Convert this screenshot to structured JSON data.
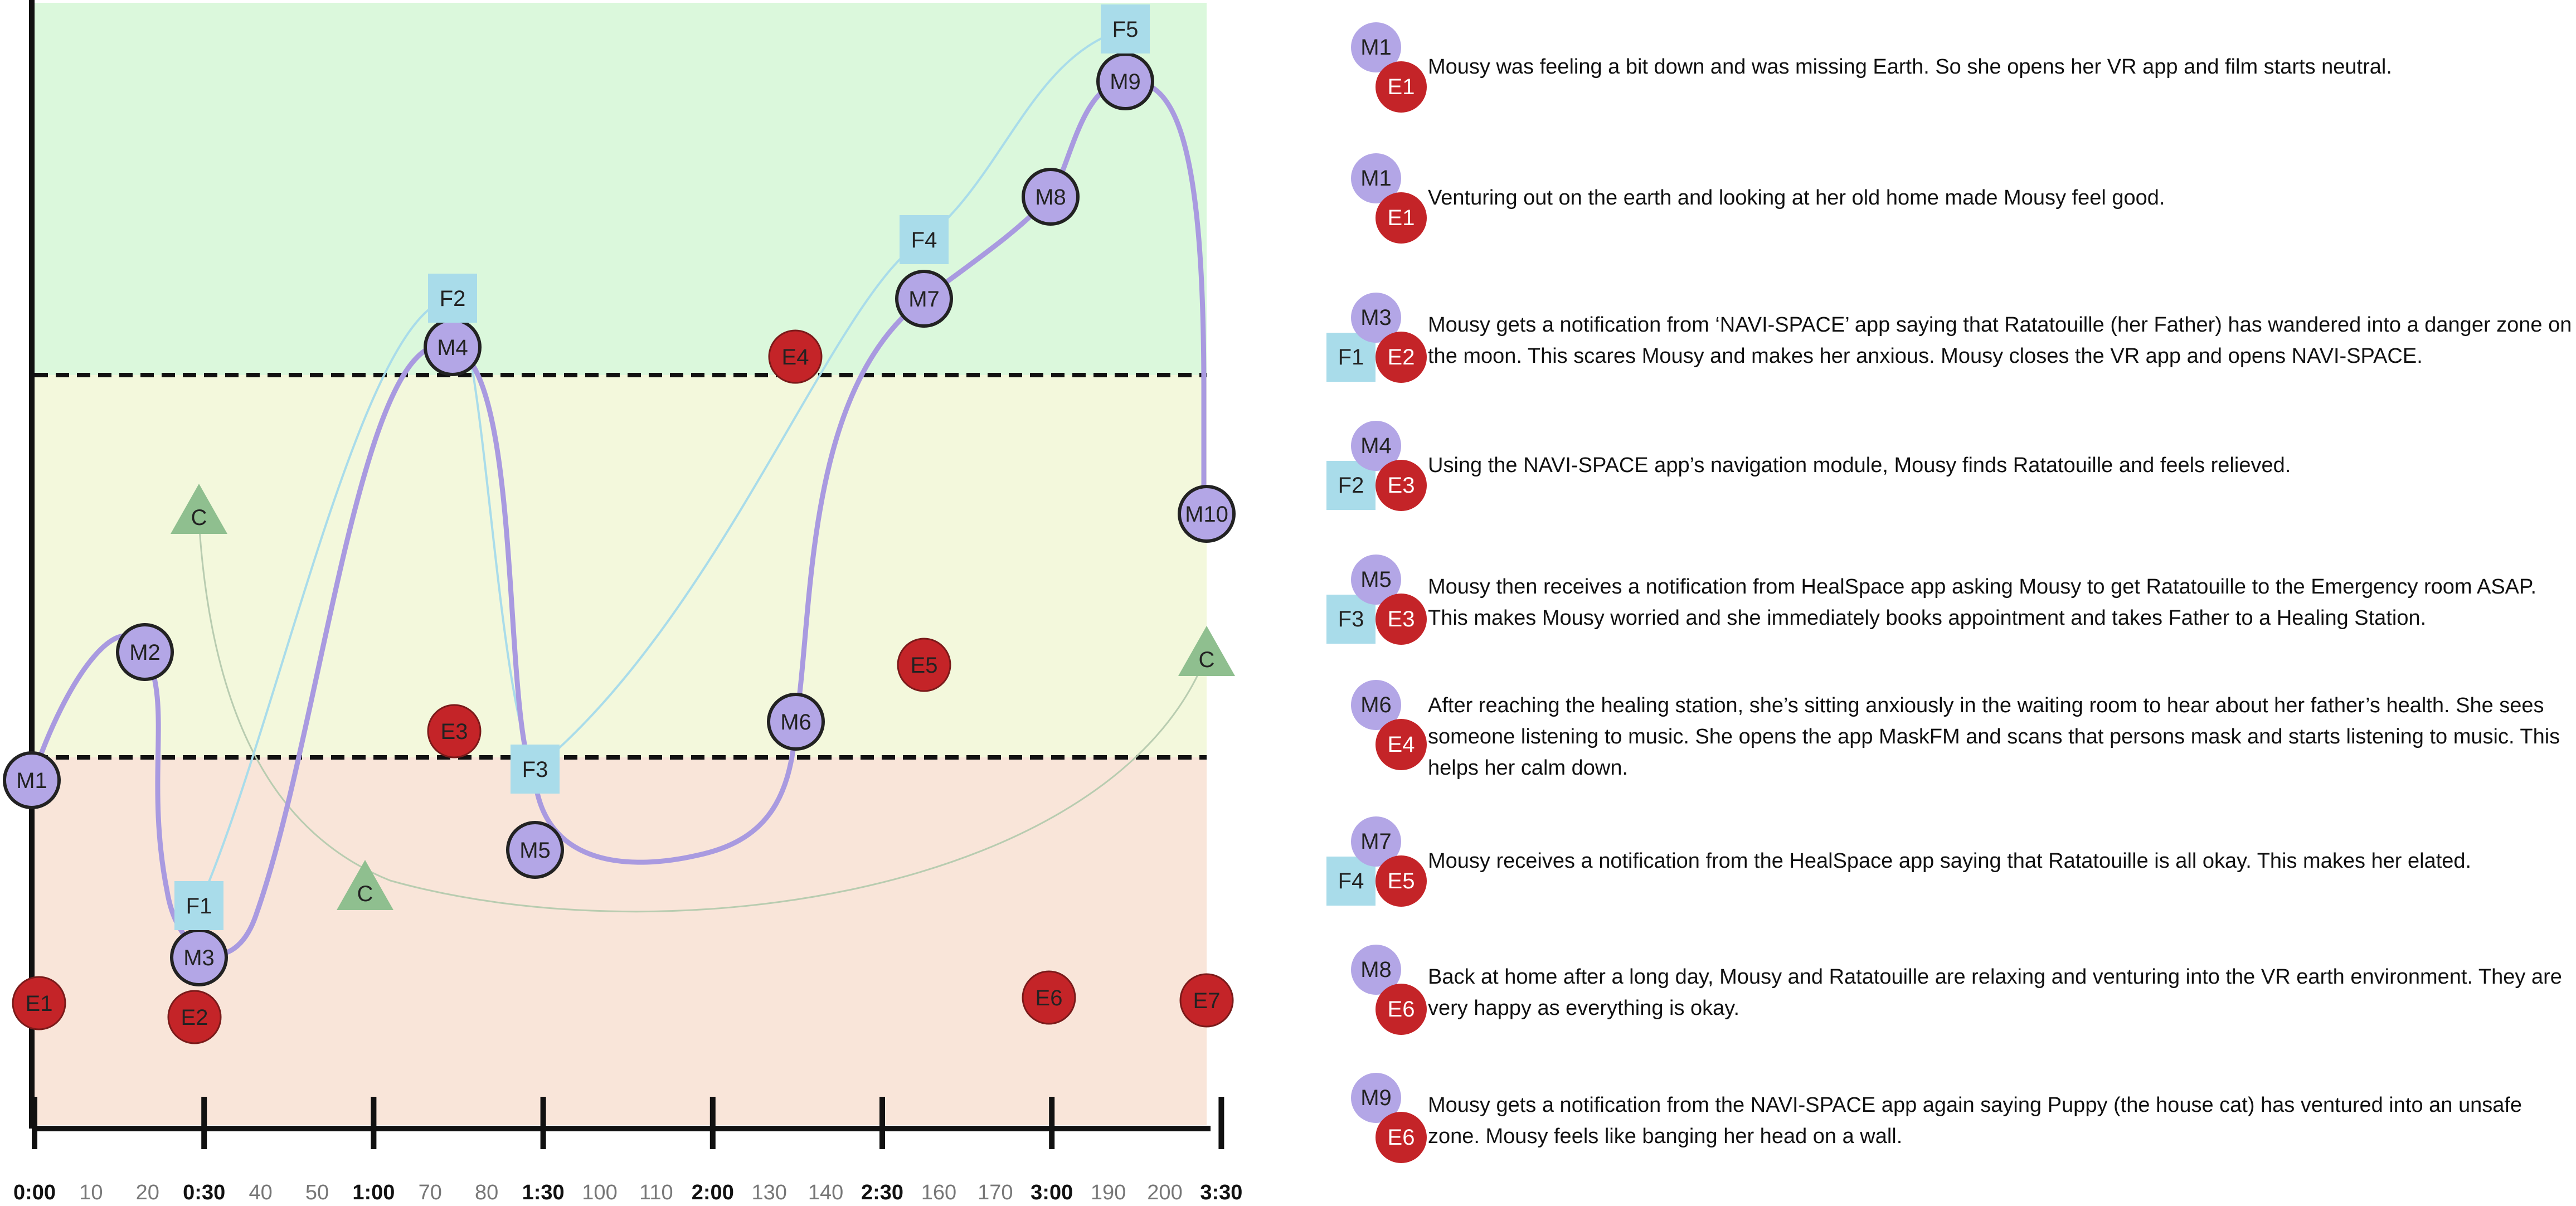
{
  "time_axis": {
    "ticks": [
      {
        "label": "0:00",
        "major": true
      },
      {
        "label": "10",
        "major": false
      },
      {
        "label": "20",
        "major": false
      },
      {
        "label": "0:30",
        "major": true
      },
      {
        "label": "40",
        "major": false
      },
      {
        "label": "50",
        "major": false
      },
      {
        "label": "1:00",
        "major": true
      },
      {
        "label": "70",
        "major": false
      },
      {
        "label": "80",
        "major": false
      },
      {
        "label": "1:30",
        "major": true
      },
      {
        "label": "100",
        "major": false
      },
      {
        "label": "110",
        "major": false
      },
      {
        "label": "2:00",
        "major": true
      },
      {
        "label": "130",
        "major": false
      },
      {
        "label": "140",
        "major": false
      },
      {
        "label": "2:30",
        "major": true
      },
      {
        "label": "160",
        "major": false
      },
      {
        "label": "170",
        "major": false
      },
      {
        "label": "3:00",
        "major": true
      },
      {
        "label": "190",
        "major": false
      },
      {
        "label": "200",
        "major": false
      },
      {
        "label": "3:30",
        "major": true
      }
    ]
  },
  "zones": {
    "top_color": "#dbf8dc",
    "middle_color": "#f3f8dc",
    "bottom_color": "#f9e5d9"
  },
  "colors": {
    "mood_line": "#a99ae0",
    "mood_node": "#b3a6e6",
    "event_node": "#c42428",
    "feature_node": "#a9dcea",
    "feature_line": "#a9dcea",
    "context_node": "#8fbf8f",
    "context_line": "#b8ccb0"
  },
  "nodes": [
    {
      "id": "M1",
      "kind": "mood",
      "label": "M1"
    },
    {
      "id": "M2",
      "kind": "mood",
      "label": "M2"
    },
    {
      "id": "M3",
      "kind": "mood",
      "label": "M3"
    },
    {
      "id": "M4",
      "kind": "mood",
      "label": "M4"
    },
    {
      "id": "M5",
      "kind": "mood",
      "label": "M5"
    },
    {
      "id": "M6",
      "kind": "mood",
      "label": "M6"
    },
    {
      "id": "M7",
      "kind": "mood",
      "label": "M7"
    },
    {
      "id": "M8",
      "kind": "mood",
      "label": "M8"
    },
    {
      "id": "M9",
      "kind": "mood",
      "label": "M9"
    },
    {
      "id": "M10",
      "kind": "mood",
      "label": "M10"
    },
    {
      "id": "E1",
      "kind": "event",
      "label": "E1"
    },
    {
      "id": "E2",
      "kind": "event",
      "label": "E2"
    },
    {
      "id": "E3",
      "kind": "event",
      "label": "E3"
    },
    {
      "id": "E4",
      "kind": "event",
      "label": "E4"
    },
    {
      "id": "E5",
      "kind": "event",
      "label": "E5"
    },
    {
      "id": "E6",
      "kind": "event",
      "label": "E6"
    },
    {
      "id": "E7",
      "kind": "event",
      "label": "E7"
    },
    {
      "id": "F1",
      "kind": "feature",
      "label": "F1"
    },
    {
      "id": "F2",
      "kind": "feature",
      "label": "F2"
    },
    {
      "id": "F3",
      "kind": "feature",
      "label": "F3"
    },
    {
      "id": "F4",
      "kind": "feature",
      "label": "F4"
    },
    {
      "id": "F5",
      "kind": "feature",
      "label": "F5"
    },
    {
      "id": "C1",
      "kind": "context",
      "label": "C"
    },
    {
      "id": "C2",
      "kind": "context",
      "label": "C"
    },
    {
      "id": "C3",
      "kind": "context",
      "label": "C"
    }
  ],
  "legend": [
    {
      "mood": "M1",
      "event": "E1",
      "feature": "",
      "text": "Mousy was feeling a bit down and was missing Earth. So she opens her VR app and film starts neutral."
    },
    {
      "mood": "M1",
      "event": "E1",
      "feature": "",
      "text": "Venturing out on the earth and looking at her old home made Mousy feel good."
    },
    {
      "mood": "M3",
      "event": "E2",
      "feature": "F1",
      "text": "Mousy gets a notification from ‘NAVI-SPACE’ app saying that Ratatouille (her Father) has wandered into a danger zone on the moon. This scares Mousy and makes her anxious. Mousy closes the VR app and opens NAVI-SPACE."
    },
    {
      "mood": "M4",
      "event": "E3",
      "feature": "F2",
      "text": "Using the NAVI-SPACE app’s navigation module, Mousy finds Ratatouille and feels relieved."
    },
    {
      "mood": "M5",
      "event": "E3",
      "feature": "F3",
      "text": "Mousy then receives a notification from HealSpace app asking Mousy to get Ratatouille to the Emergency room ASAP. This makes Mousy worried and she immediately books appointment and takes Father to a Healing Station."
    },
    {
      "mood": "M6",
      "event": "E4",
      "feature": "",
      "text": "After reaching the healing station, she’s sitting anxiously in the waiting room to hear about her father’s health. She sees someone listening to music. She opens the app MaskFM and scans that persons mask and starts listening to music. This helps her calm down."
    },
    {
      "mood": "M7",
      "event": "E5",
      "feature": "F4",
      "text": "Mousy receives a notification from the HealSpace app saying that Ratatouille is all okay. This makes her elated."
    },
    {
      "mood": "M8",
      "event": "E6",
      "feature": "",
      "text": "Back at home after a long day, Mousy and Ratatouille are relaxing and venturing into the VR earth environment. They are very happy as everything is okay."
    },
    {
      "mood": "M9",
      "event": "E6",
      "feature": "",
      "text": "Mousy gets a notification from the NAVI-SPACE app again saying Puppy (the house cat) has ventured into an unsafe zone. Mousy feels like banging her head on a wall."
    }
  ]
}
